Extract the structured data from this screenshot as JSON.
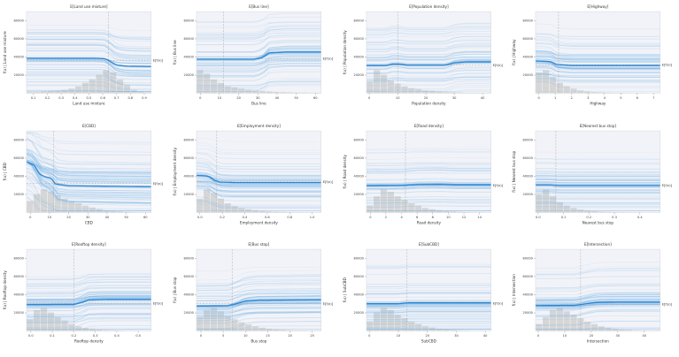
{
  "figure": {
    "background": "#ffffff",
    "plot_bg": "#f2f3f8",
    "ice_color": "#7db8e8",
    "mean_color": "#2f86d0",
    "hist_color": "#d6d6d6",
    "dash_color": "#aaaaaa",
    "text_color": "#3c3c3c",
    "grid_rows": 3,
    "grid_cols": 4
  },
  "chart_data": [
    {
      "type": "line",
      "title": "E[Land use mixture]",
      "xlabel": "Land use mixture",
      "ylabel": "f(x) | Land use mixture",
      "efx_label": "E[f(x)]",
      "xlim": [
        0.05,
        0.95
      ],
      "ylim": [
        0,
        90000
      ],
      "x_ticks": [
        "0.1",
        "0.2",
        "0.3",
        "0.4",
        "0.5",
        "0.6",
        "0.7",
        "0.8",
        "0.9"
      ],
      "y_ticks": [
        "20000",
        "40000",
        "60000",
        "80000"
      ],
      "expected_x": 0.64,
      "expected_fx": 36000,
      "mean_x": [
        0.05,
        0.55,
        0.62,
        0.66,
        0.7,
        0.78,
        0.95
      ],
      "mean_y": [
        38500,
        38500,
        38000,
        34500,
        31000,
        29800,
        29500
      ],
      "hist": [
        0.05,
        0.05,
        0.08,
        0.1,
        0.12,
        0.15,
        0.2,
        0.3,
        0.45,
        0.6,
        0.8,
        1.0,
        0.9,
        0.6,
        0.35,
        0.15,
        0.08,
        0.04
      ],
      "ice_spread": 42000
    },
    {
      "type": "line",
      "title": "E[Bus line]",
      "xlabel": "Bus line",
      "ylabel": "f(x) | Bus line",
      "efx_label": "E[f(x)]",
      "xlim": [
        -2,
        63
      ],
      "ylim": [
        0,
        90000
      ],
      "x_ticks": [
        "0",
        "10",
        "20",
        "30",
        "40",
        "50",
        "60"
      ],
      "y_ticks": [
        "20000",
        "40000",
        "60000",
        "80000"
      ],
      "expected_x": 12,
      "expected_fx": 38000,
      "mean_x": [
        -2,
        28,
        32,
        36,
        45,
        63
      ],
      "mean_y": [
        37500,
        37500,
        39000,
        44500,
        45500,
        45500
      ],
      "hist": [
        1.0,
        0.85,
        0.6,
        0.45,
        0.3,
        0.25,
        0.2,
        0.15,
        0.12,
        0.1,
        0.08,
        0.06,
        0.05,
        0.04,
        0.03,
        0.03,
        0.02,
        0.02
      ],
      "ice_spread": 42000
    },
    {
      "type": "line",
      "title": "E[Population density]",
      "xlabel": "Population density",
      "ylabel": "f(x) | Population density",
      "efx_label": "E[f(x)]",
      "xlim": [
        -1,
        43
      ],
      "ylim": [
        0,
        90000
      ],
      "x_ticks": [
        "0",
        "10",
        "20",
        "30",
        "40"
      ],
      "y_ticks": [
        "20000",
        "40000",
        "60000",
        "80000"
      ],
      "expected_x": 10,
      "expected_fx": 31000,
      "mean_x": [
        -1,
        6,
        8,
        11,
        13,
        27,
        30,
        34,
        43
      ],
      "mean_y": [
        30500,
        30500,
        32000,
        32000,
        31000,
        31000,
        33500,
        34500,
        34500
      ],
      "hist": [
        0.5,
        1.0,
        0.8,
        0.55,
        0.4,
        0.3,
        0.22,
        0.18,
        0.12,
        0.1,
        0.07,
        0.05,
        0.04,
        0.03,
        0.02,
        0.02,
        0.01,
        0.01
      ],
      "ice_spread": 42000
    },
    {
      "type": "line",
      "title": "E[Highway]",
      "xlabel": "Highway",
      "ylabel": "f(x) | Highway",
      "efx_label": "E[f(x)]",
      "xlim": [
        -0.2,
        7.4
      ],
      "ylim": [
        0,
        90000
      ],
      "x_ticks": [
        "0",
        "1",
        "2",
        "3",
        "4",
        "5",
        "6",
        "7"
      ],
      "y_ticks": [
        "20000",
        "40000",
        "60000",
        "80000"
      ],
      "expected_x": 1.2,
      "expected_fx": 31500,
      "mean_x": [
        -0.2,
        0.7,
        1.1,
        2,
        7.4
      ],
      "mean_y": [
        35500,
        35000,
        31500,
        30500,
        30500
      ],
      "hist": [
        0.9,
        1.0,
        0.7,
        0.45,
        0.3,
        0.2,
        0.12,
        0.08,
        0.05,
        0.04,
        0.03,
        0.02,
        0.02,
        0.01,
        0.01,
        0.01,
        0.0,
        0.0
      ],
      "ice_spread": 42000
    },
    {
      "type": "line",
      "title": "E[CBD]",
      "xlabel": "CBD",
      "ylabel": "f(x) | CBD",
      "efx_label": "E[f(x)]",
      "xlim": [
        -2,
        63
      ],
      "ylim": [
        0,
        90000
      ],
      "x_ticks": [
        "0",
        "10",
        "20",
        "30",
        "40",
        "50",
        "60"
      ],
      "y_ticks": [
        "20000",
        "40000",
        "60000",
        "80000"
      ],
      "expected_x": 12,
      "expected_fx": 32000,
      "mean_x": [
        -2,
        2,
        5,
        8,
        11,
        13,
        20,
        63
      ],
      "mean_y": [
        56000,
        52000,
        42000,
        39000,
        38000,
        31500,
        29500,
        28500
      ],
      "hist": [
        0.5,
        0.8,
        1.0,
        0.9,
        0.75,
        0.6,
        0.5,
        0.4,
        0.3,
        0.22,
        0.15,
        0.1,
        0.07,
        0.05,
        0.03,
        0.02,
        0.01,
        0.01
      ],
      "ice_spread": 42000
    },
    {
      "type": "line",
      "title": "E[Employment density]",
      "xlabel": "Employment density",
      "ylabel": "f(x) | Employment density",
      "efx_label": "E[f(x)]",
      "xlim": [
        -0.03,
        1.08
      ],
      "ylim": [
        0,
        90000
      ],
      "x_ticks": [
        "0.0",
        "0.2",
        "0.4",
        "0.6",
        "0.8",
        "1.0"
      ],
      "y_ticks": [
        "20000",
        "40000",
        "60000",
        "80000"
      ],
      "expected_x": 0.15,
      "expected_fx": 34000,
      "mean_x": [
        -0.03,
        0.08,
        0.13,
        0.18,
        0.3,
        1.08
      ],
      "mean_y": [
        41000,
        40000,
        35500,
        33500,
        33000,
        33000
      ],
      "hist": [
        0.6,
        1.0,
        0.85,
        0.6,
        0.4,
        0.28,
        0.2,
        0.14,
        0.1,
        0.07,
        0.05,
        0.04,
        0.03,
        0.02,
        0.01,
        0.01,
        0.01,
        0.0
      ],
      "ice_spread": 42000
    },
    {
      "type": "line",
      "title": "E[Road density]",
      "xlabel": "Road density",
      "ylabel": "f(x) | Road density",
      "efx_label": "E[f(x)]",
      "xlim": [
        -0.5,
        15.5
      ],
      "ylim": [
        0,
        90000
      ],
      "x_ticks": [
        "0",
        "2",
        "4",
        "6",
        "8",
        "10",
        "12",
        "14"
      ],
      "y_ticks": [
        "20000",
        "40000",
        "60000",
        "80000"
      ],
      "expected_x": 4.5,
      "expected_fx": 30000,
      "mean_x": [
        -0.5,
        4,
        6,
        9,
        11,
        15.5
      ],
      "mean_y": [
        29500,
        29800,
        30800,
        31000,
        30500,
        30500
      ],
      "hist": [
        0.3,
        0.7,
        1.0,
        0.9,
        0.7,
        0.55,
        0.4,
        0.3,
        0.2,
        0.14,
        0.1,
        0.07,
        0.05,
        0.03,
        0.02,
        0.01,
        0.01,
        0.0
      ],
      "ice_spread": 42000
    },
    {
      "type": "line",
      "title": "E[Nearest bus stop]",
      "xlabel": "Nearest bus stop",
      "ylabel": "f(x) | Nearest bus stop",
      "efx_label": "E[f(x)]",
      "xlim": [
        -0.01,
        0.48
      ],
      "ylim": [
        0,
        90000
      ],
      "x_ticks": [
        "0.0",
        "0.1",
        "0.2",
        "0.3",
        "0.4"
      ],
      "y_ticks": [
        "20000",
        "40000",
        "60000",
        "80000"
      ],
      "expected_x": 0.07,
      "expected_fx": 30000,
      "mean_x": [
        -0.01,
        0.05,
        0.08,
        0.48
      ],
      "mean_y": [
        30500,
        30500,
        29800,
        29800
      ],
      "hist": [
        0.8,
        1.0,
        0.7,
        0.45,
        0.3,
        0.2,
        0.13,
        0.09,
        0.06,
        0.04,
        0.03,
        0.02,
        0.02,
        0.01,
        0.01,
        0.0,
        0.0,
        0.0
      ],
      "ice_spread": 42000
    },
    {
      "type": "line",
      "title": "E[Rooftop density]",
      "xlabel": "Rooftop density",
      "ylabel": "f(x) | Rooftop density",
      "efx_label": "E[f(x)]",
      "xlim": [
        -0.02,
        0.56
      ],
      "ylim": [
        0,
        90000
      ],
      "x_ticks": [
        "0.0",
        "0.1",
        "0.2",
        "0.3",
        "0.4",
        "0.5"
      ],
      "y_ticks": [
        "20000",
        "40000",
        "60000",
        "80000"
      ],
      "expected_x": 0.2,
      "expected_fx": 30500,
      "mean_x": [
        -0.02,
        0.2,
        0.24,
        0.27,
        0.35,
        0.56
      ],
      "mean_y": [
        29000,
        29200,
        31500,
        34000,
        34500,
        34500
      ],
      "hist": [
        0.5,
        0.9,
        1.0,
        0.8,
        0.6,
        0.45,
        0.3,
        0.2,
        0.13,
        0.09,
        0.06,
        0.04,
        0.03,
        0.02,
        0.01,
        0.01,
        0.0,
        0.0
      ],
      "ice_spread": 42000
    },
    {
      "type": "line",
      "title": "E[Bus stop]",
      "xlabel": "Bus stop",
      "ylabel": "f(x) | Bus stop",
      "efx_label": "E[f(x)]",
      "xlim": [
        -1,
        27
      ],
      "ylim": [
        0,
        90000
      ],
      "x_ticks": [
        "0",
        "5",
        "10",
        "15",
        "20",
        "25"
      ],
      "y_ticks": [
        "20000",
        "40000",
        "60000",
        "80000"
      ],
      "expected_x": 7,
      "expected_fx": 30000,
      "mean_x": [
        -1,
        6,
        8,
        10,
        13,
        27
      ],
      "mean_y": [
        27500,
        27800,
        30000,
        33000,
        34000,
        34500
      ],
      "hist": [
        0.6,
        0.9,
        1.0,
        0.85,
        0.65,
        0.5,
        0.38,
        0.28,
        0.2,
        0.14,
        0.1,
        0.07,
        0.05,
        0.03,
        0.02,
        0.02,
        0.01,
        0.01
      ],
      "ice_spread": 42000
    },
    {
      "type": "line",
      "title": "E[SubCBD]",
      "xlabel": "SubCBD",
      "ylabel": "f(x) | SubCBD",
      "efx_label": "E[f(x)]",
      "xlim": [
        -1,
        42
      ],
      "ylim": [
        0,
        90000
      ],
      "x_ticks": [
        "0",
        "10",
        "20",
        "30",
        "40"
      ],
      "y_ticks": [
        "20000",
        "40000",
        "60000",
        "80000"
      ],
      "expected_x": 13,
      "expected_fx": 30500,
      "mean_x": [
        -1,
        10,
        13,
        20,
        42
      ],
      "mean_y": [
        30000,
        30000,
        31000,
        31000,
        31000
      ],
      "hist": [
        0.4,
        0.8,
        1.0,
        0.9,
        0.7,
        0.55,
        0.4,
        0.3,
        0.2,
        0.15,
        0.1,
        0.07,
        0.05,
        0.03,
        0.02,
        0.01,
        0.01,
        0.0
      ],
      "ice_spread": 42000
    },
    {
      "type": "line",
      "title": "E[Intersection]",
      "xlabel": "Intersection",
      "ylabel": "f(x) | Intersection",
      "efx_label": "E[f(x)]",
      "xlim": [
        -1,
        46
      ],
      "ylim": [
        0,
        90000
      ],
      "x_ticks": [
        "0",
        "10",
        "20",
        "30",
        "40"
      ],
      "y_ticks": [
        "20000",
        "40000",
        "60000",
        "80000"
      ],
      "expected_x": 16,
      "expected_fx": 29500,
      "mean_x": [
        -1,
        14,
        18,
        22,
        30,
        46
      ],
      "mean_y": [
        28000,
        28200,
        30000,
        31500,
        31800,
        31800
      ],
      "hist": [
        0.3,
        0.6,
        0.9,
        1.0,
        0.85,
        0.7,
        0.55,
        0.4,
        0.3,
        0.2,
        0.14,
        0.1,
        0.07,
        0.05,
        0.03,
        0.02,
        0.01,
        0.01
      ],
      "ice_spread": 42000
    }
  ]
}
